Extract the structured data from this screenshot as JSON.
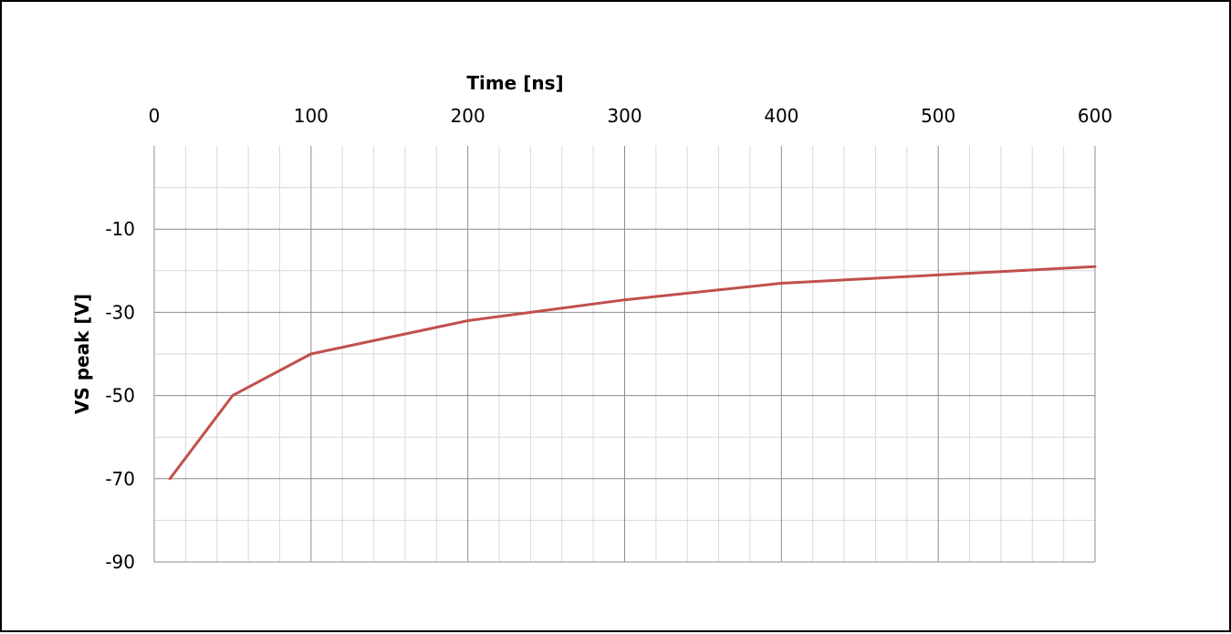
{
  "chart_data": {
    "type": "line",
    "xlabel": "Time [ns]",
    "ylabel": "VS peak [V]",
    "xlim": [
      0,
      600
    ],
    "ylim": [
      -90,
      10
    ],
    "x_axis_position": "top",
    "y_direction": "reversed",
    "x_ticks": [
      0,
      100,
      200,
      300,
      400,
      500,
      600
    ],
    "x_tick_labels": [
      "0",
      "100",
      "200",
      "300",
      "400",
      "500",
      "600"
    ],
    "y_ticks": [
      -10,
      -30,
      -50,
      -70,
      -90
    ],
    "y_tick_labels": [
      "-10",
      "-30",
      "-50",
      "-70",
      "-90"
    ],
    "grid": true,
    "legend": "none",
    "series": [
      {
        "color": "#C0504D",
        "x": [
          10,
          50,
          100,
          200,
          300,
          400,
          500,
          600
        ],
        "y": [
          -70,
          -50,
          -40,
          -32,
          -27,
          -23,
          -21,
          -19
        ]
      }
    ]
  }
}
